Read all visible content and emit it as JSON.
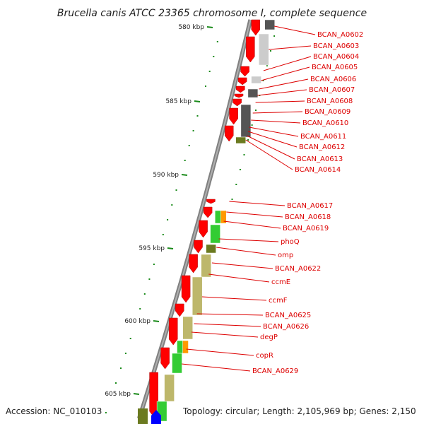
{
  "title": "Brucella canis ATCC 23365 chromosome I, complete sequence",
  "accession": "Accession: NC_010103",
  "summary": "Topology: circular; Length: 2,105,969 bp; Genes: 2,150",
  "colors": {
    "axis": "#808080",
    "forward_gene": "#ff0000",
    "tick": "#1a8a1a",
    "label": "#dd0000",
    "cog_gray_dark": "#555555",
    "cog_gray_light": "#cccccc",
    "cog_green": "#33cc33",
    "cog_olive": "#6b7a20",
    "cog_khaki": "#bdb76b",
    "cog_orange": "#ff9900",
    "cog_blue": "#0000ff"
  },
  "ticks": [
    "580 kbp",
    "585 kbp",
    "590 kbp",
    "595 kbp",
    "600 kbp",
    "605 kbp"
  ],
  "genes": [
    "BCAN_A0602",
    "BCAN_A0603",
    "BCAN_A0604",
    "BCAN_A0605",
    "BCAN_A0606",
    "BCAN_A0607",
    "BCAN_A0608",
    "BCAN_A0609",
    "BCAN_A0610",
    "BCAN_A0611",
    "BCAN_A0612",
    "BCAN_A0613",
    "BCAN_A0614",
    "BCAN_A0617",
    "BCAN_A0618",
    "BCAN_A0619",
    "phoQ",
    "omp",
    "BCAN_A0622",
    "ccmE",
    "ccmF",
    "BCAN_A0625",
    "BCAN_A0626",
    "degP",
    "copR",
    "BCAN_A0629"
  ]
}
